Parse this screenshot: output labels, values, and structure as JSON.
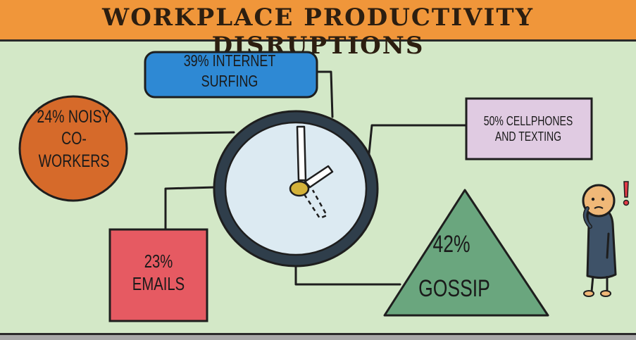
{
  "header": {
    "title": "Workplace Productivity Disruptions"
  },
  "items": {
    "internet": "39% Internet surfing",
    "noisy": "24% Noisy co-workers",
    "cellphones": "50% Cellphones and texting",
    "emails": "23% Emails",
    "gossip_percent": "42%",
    "gossip_label": "Gossip"
  },
  "colors": {
    "banner": "#f0963a",
    "background": "#d3e8c7",
    "internet": "#2e89d4",
    "noisy": "#d66a2a",
    "cellphones": "#e0cbe2",
    "emails": "#e65a62",
    "gossip": "#6aa67e",
    "clock_face": "#dceaf2",
    "clock_rim": "#2f3e4b"
  }
}
